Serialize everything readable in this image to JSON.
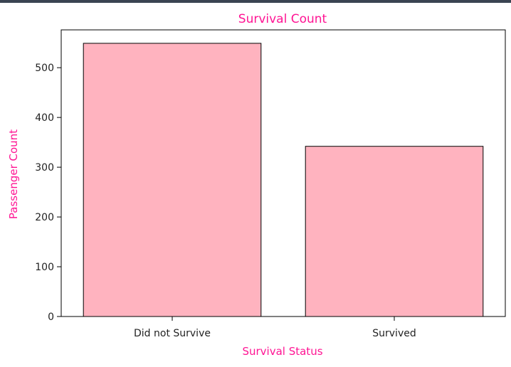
{
  "chart_data": {
    "type": "bar",
    "title": "Survival Count",
    "xlabel": "Survival Status",
    "ylabel": "Passenger Count",
    "categories": [
      "Did not Survive",
      "Survived"
    ],
    "values": [
      549,
      342
    ],
    "ylim": [
      0,
      576
    ],
    "yticks": [
      0,
      100,
      200,
      300,
      400,
      500
    ],
    "grid": false,
    "colors": {
      "bar_fill": "#ffb3bf",
      "bar_edge": "#000000",
      "title": "#ff1493",
      "axis_label": "#ff1493",
      "window_bar": "#3a4452"
    }
  }
}
